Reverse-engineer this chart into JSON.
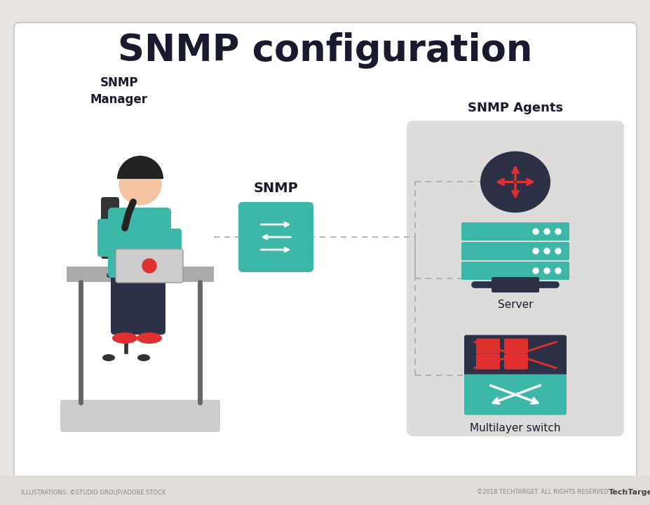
{
  "title": "SNMP configuration",
  "title_fontsize": 38,
  "title_fontweight": "bold",
  "title_color": "#1a1a2e",
  "bg_color": "#e8e5e0",
  "card_bg": "#ffffff",
  "card_border": "#cccccc",
  "agents_box_color": "#dddcda",
  "teal_color": "#3db8a8",
  "dark_color": "#2c3148",
  "red_color": "#e03030",
  "skin_color": "#f5c5a3",
  "snmp_manager_label": "SNMP\nManager",
  "snmp_label": "SNMP",
  "agents_label": "SNMP Agents",
  "router_label": "Router",
  "server_label": "Server",
  "switch_label": "Multilayer switch",
  "footer_left": "ILLUSTRATIONS: ©STUDIO GROUP/ADOBE STOCK",
  "footer_right": "©2018 TECHTARGET. ALL RIGHTS RESERVED",
  "footer_brand": "TechTarget"
}
